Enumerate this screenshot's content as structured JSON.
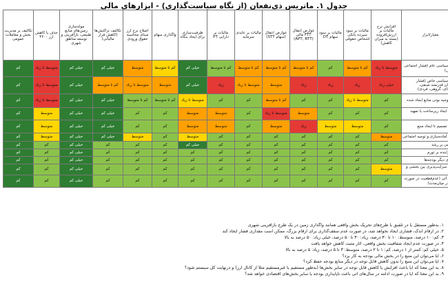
{
  "title": "جدول ۱. ماتریس ذی‌نفعان (از نگاه سیاست‌گذاری) - ابزارهای مالی",
  "colors": {
    "dg": "#2e7d32",
    "lg": "#8bc34a",
    "yg": "#cddc39",
    "y": "#ffd600",
    "o": "#ffa000",
    "r": "#e53935"
  },
  "headers": [
    "معیار/ابزار",
    "افزایش نرخ مالیات بر ارزش‌افزوده (بسته به میزان کاهش)",
    "مالیات بر سود سپرده بانکی اشخاص حقوقی",
    "مالیات بر سود سهام DT",
    "عوارض انتقال FTT مالی (APT, BTT)",
    "عوارض انتقال (سهام STT)",
    "مالیات بر عایدی سرمایه",
    "مالیات بر دارایی PT",
    "ظرفیت‌سازی برای ایجاد بنگاه",
    "واگذاری سهام",
    "اصلاح نرخ ارز مبنای محاسبه حقوق ورودی",
    "تکالیف تراکنش‌ها (کاهش فرار مالیاتی)",
    "مولدسازی زمین‌های منابع طبیعی، بازآفرینی و توسعه مناطق شهری",
    "حذف یا کاهش ارز ۴۲۰۰",
    "تکالیف بر مدیریت بخش و معاملات عمومی"
  ],
  "rows": [
    {
      "label": "هزینه سیاسی عام (فشار اجتماعی عمومی)",
      "cells": [
        [
          "r",
          "متوسط تا زیاد"
        ],
        [
          "o",
          "کم تا متوسط"
        ],
        [
          "lg",
          "کم"
        ],
        [
          "o",
          "کم تا متوسط"
        ],
        [
          "o",
          "کم تا متوسط"
        ],
        [
          "o",
          "کم تا متوسط"
        ],
        [
          "lg",
          "کم تا متوسط"
        ],
        [
          "dg",
          "خیلی کم"
        ],
        [
          "y",
          "کم تا متوسط"
        ],
        [
          "o",
          "متوسط"
        ],
        [
          "dg",
          "خیلی کم"
        ],
        [
          "dg",
          "خیلی کم"
        ],
        [
          "r",
          "متوسط تا زیاد"
        ],
        [
          "dg",
          "کم"
        ]
      ]
    },
    {
      "label": "هزینه سیاسی خاص (فشار ذی‌نفعان قدرتمند صنفی، منطقه‌ای، گروهی، فردی)",
      "cells": [
        [
          "r",
          "خیلی زیاد"
        ],
        [
          "r",
          "زیاد"
        ],
        [
          "r",
          "زیاد"
        ],
        [
          "r",
          "زیاد"
        ],
        [
          "o",
          "متوسط"
        ],
        [
          "o",
          "متوسط تا زیاد"
        ],
        [
          "r",
          "زیاد"
        ],
        [
          "dg",
          "خیلی کم"
        ],
        [
          "o",
          "متوسط"
        ],
        [
          "o",
          "متوسط تا زیاد"
        ],
        [
          "o",
          "کم تا متوسط"
        ],
        [
          "dg",
          "خیلی کم"
        ],
        [
          "r",
          "متوسط تا زیاد"
        ],
        [
          "dg",
          "کم"
        ]
      ]
    },
    {
      "label": "قابل توجیه بودن منابع ایجاد شده",
      "cells": [
        [
          "lg",
          "کم"
        ],
        [
          "y",
          "متوسط تا زیاد"
        ],
        [
          "lg",
          "کم"
        ],
        [
          "lg",
          "کم"
        ],
        [
          "o",
          "کم تا متوسط"
        ],
        [
          "lg",
          "کم"
        ],
        [
          "lg",
          "کم"
        ],
        [
          "y",
          "متوسط تا زیاد"
        ],
        [
          "lg",
          "کم تا متوسط"
        ],
        [
          "lg",
          "کم تا متوسط"
        ],
        [
          "dg",
          "خیلی کم"
        ],
        [
          "dg",
          "خیلی کم"
        ],
        [
          "r",
          "متوسط تا زیاد"
        ],
        [
          "dg",
          "کم"
        ]
      ]
    },
    {
      "label": "نیاز به ایجاد زیرساخت یا تمهید فرایند",
      "cells": [
        [
          "lg",
          "کم"
        ],
        [
          "lg",
          "کم"
        ],
        [
          "lg",
          "کم"
        ],
        [
          "o",
          "متوسط"
        ],
        [
          "r",
          "متوسط تا زیاد"
        ],
        [
          "lg",
          "کم"
        ],
        [
          "o",
          "متوسط"
        ],
        [
          "o",
          "متوسط"
        ],
        [
          "lg",
          "کم"
        ],
        [
          "lg",
          "کم"
        ],
        [
          "dg",
          "خیلی کم"
        ],
        [
          "dg",
          "خیلی کم"
        ],
        [
          "y",
          "متوسط"
        ],
        [
          "dg",
          "کم"
        ]
      ]
    },
    {
      "label": "فاصله تصمیم تا ایجاد منبع",
      "cells": [
        [
          "lg",
          "کم"
        ],
        [
          "y",
          "متوسط"
        ],
        [
          "y",
          "متوسط"
        ],
        [
          "r",
          "زیاد"
        ],
        [
          "o",
          "متوسط"
        ],
        [
          "lg",
          "کم"
        ],
        [
          "o",
          "متوسط"
        ],
        [
          "o",
          "متوسط"
        ],
        [
          "lg",
          "کم"
        ],
        [
          "lg",
          "کم"
        ],
        [
          "dg",
          "خیلی کم"
        ],
        [
          "dg",
          "خیلی کم"
        ],
        [
          "y",
          "متوسط"
        ],
        [
          "dg",
          "کم"
        ]
      ]
    },
    {
      "label": "نیاز به آماده‌سازی و توجیه اجتماعی",
      "cells": [
        [
          "o",
          "متوسط"
        ],
        [
          "lg",
          "کم"
        ],
        [
          "lg",
          "کم"
        ],
        [
          "lg",
          "کم"
        ],
        [
          "lg",
          "کم"
        ],
        [
          "lg",
          "کم"
        ],
        [
          "lg",
          "کم"
        ],
        [
          "y",
          "متوسط"
        ],
        [
          "lg",
          "کم"
        ],
        [
          "y",
          "متوسط"
        ],
        [
          "dg",
          "خیلی کم"
        ],
        [
          "dg",
          "خیلی کم"
        ],
        [
          "y",
          "متوسط"
        ],
        [
          "dg",
          "کم"
        ]
      ]
    },
    {
      "label": "اثر منفی بر رشد",
      "cells": [
        [
          "lg",
          "کم"
        ],
        [
          "lg",
          "کم"
        ],
        [
          "lg",
          "کم"
        ],
        [
          "lg",
          "کم"
        ],
        [
          "lg",
          "کم"
        ],
        [
          "lg",
          "کم"
        ],
        [
          "lg",
          "کم"
        ],
        [
          "dg",
          "خیلی کم"
        ],
        [
          "lg",
          "کم"
        ],
        [
          "lg",
          "کم"
        ],
        [
          "lg",
          "کم"
        ],
        [
          "dg",
          "خیلی کم"
        ],
        [
          "lg",
          "کم"
        ],
        [
          "dg",
          "کم"
        ]
      ]
    },
    {
      "label": "اثر افزاینده بر تورم",
      "cells": [
        [
          "lg",
          "کم"
        ],
        [
          "lg",
          "کم"
        ],
        [
          "lg",
          "کم"
        ],
        [
          "lg",
          "کم"
        ],
        [
          "lg",
          "کم"
        ],
        [
          "lg",
          "کم"
        ],
        [
          "lg",
          "کم"
        ],
        [
          "lg",
          "کم"
        ],
        [
          "lg",
          "کم"
        ],
        [
          "lg",
          "کم"
        ],
        [
          "lg",
          "کم"
        ],
        [
          "dg",
          "خیلی کم"
        ],
        [
          "lg",
          "کم"
        ],
        [
          "dg",
          "کم"
        ]
      ]
    },
    {
      "label": "اثر روی دیگر بودجه‌ها",
      "cells": [
        [
          "lg",
          "کم"
        ],
        [
          "lg",
          "کم"
        ],
        [
          "lg",
          "کم"
        ],
        [
          "lg",
          "کم"
        ],
        [
          "lg",
          "کم"
        ],
        [
          "lg",
          "کم"
        ],
        [
          "lg",
          "کم"
        ],
        [
          "lg",
          "کم"
        ],
        [
          "lg",
          "کم"
        ],
        [
          "lg",
          "کم"
        ],
        [
          "lg",
          "کم"
        ],
        [
          "dg",
          "خیلی کم"
        ],
        [
          "lg",
          "کم"
        ],
        [
          "dg",
          "کم"
        ]
      ]
    },
    {
      "label": "ریسک سرایت‌پذیری بین بخشی و تلاطم",
      "cells": [
        [
          "y",
          "متوسط"
        ],
        [
          "lg",
          "کم"
        ],
        [
          "lg",
          "کم"
        ],
        [
          "lg",
          "کم"
        ],
        [
          "lg",
          "کم"
        ],
        [
          "lg",
          "کم"
        ],
        [
          "lg",
          "کم"
        ],
        [
          "lg",
          "کم"
        ],
        [
          "lg",
          "کم"
        ],
        [
          "lg",
          "کم"
        ],
        [
          "lg",
          "کم"
        ],
        [
          "dg",
          "خیلی کم"
        ],
        [
          "lg",
          "کم"
        ],
        [
          "dg",
          "کم"
        ]
      ]
    },
    {
      "label": "ریسک آتی (عدم‌قطعیت در صورت ادامه در میان‌مدت)",
      "cells": [
        [
          "lg",
          "کم"
        ],
        [
          "lg",
          "کم"
        ],
        [
          "lg",
          "کم"
        ],
        [
          "lg",
          "کم"
        ],
        [
          "lg",
          "کم"
        ],
        [
          "lg",
          "کم"
        ],
        [
          "lg",
          "کم"
        ],
        [
          "lg",
          "کم"
        ],
        [
          "lg",
          "کم"
        ],
        [
          "lg",
          "کم"
        ],
        [
          "lg",
          "کم"
        ],
        [
          "dg",
          "خیلی کم"
        ],
        [
          "lg",
          "کم"
        ],
        [
          "dg",
          "کم"
        ]
      ]
    }
  ],
  "notes": [
    "۱. به‌طور مستقل یا در تلفیق با طرح‌های تحریک بخش واقعی همانند واگذاری زمین در یک طرح بازآفرینی شهری",
    "۲. در ارقام اندک، فشاری ایجاد نخواهد شد، در صورت عدم سقف‌گذاری برای ارقام بزرگ، ممکن است مقداری فشار ایجاد کند",
    "۳. کم: ۱۰ درصد، متوسط: ۱۰ تا ۳۰ درصد، زیاد: ۳۰ تا ۵۰ درصد، خیلی زیاد: ۵۰ درصد به بالا",
    "۴. در صورت عدم ایجاد شفافیت بخش واقعی، آثار مثبت کاهش خواهد یافت",
    "۵. خیلی کم: کمتر از ۱ درصد، کم: ۱ تا ۲ درصد، متوسط: ۳ تا ۵ درصد، زیاد: ۵ درصد به بالا",
    "۶. آیا می‌توان این منبع را در بخش مالی بودجه به کار برد؟",
    "۷. آیا می‌توان این منبع را بدون کاهش قابل توجه در دیگر منابع بودجه حفظ کرد؟",
    "۸. به این معنا که آیا باعث افزایش یا کاهش قابل توجه در سایر بخش‌ها (به‌طور مستقیم یا غیرمستقیم مثلاً از کانال ارز) و درنهایت کل سیستم شود؟",
    "۹. به این معنا که آیا در صورت ادامه در سال‌های آتی باعث ناپایداری بودجه یا سایر بخش‌های اقتصادی خواهد شد؟"
  ]
}
